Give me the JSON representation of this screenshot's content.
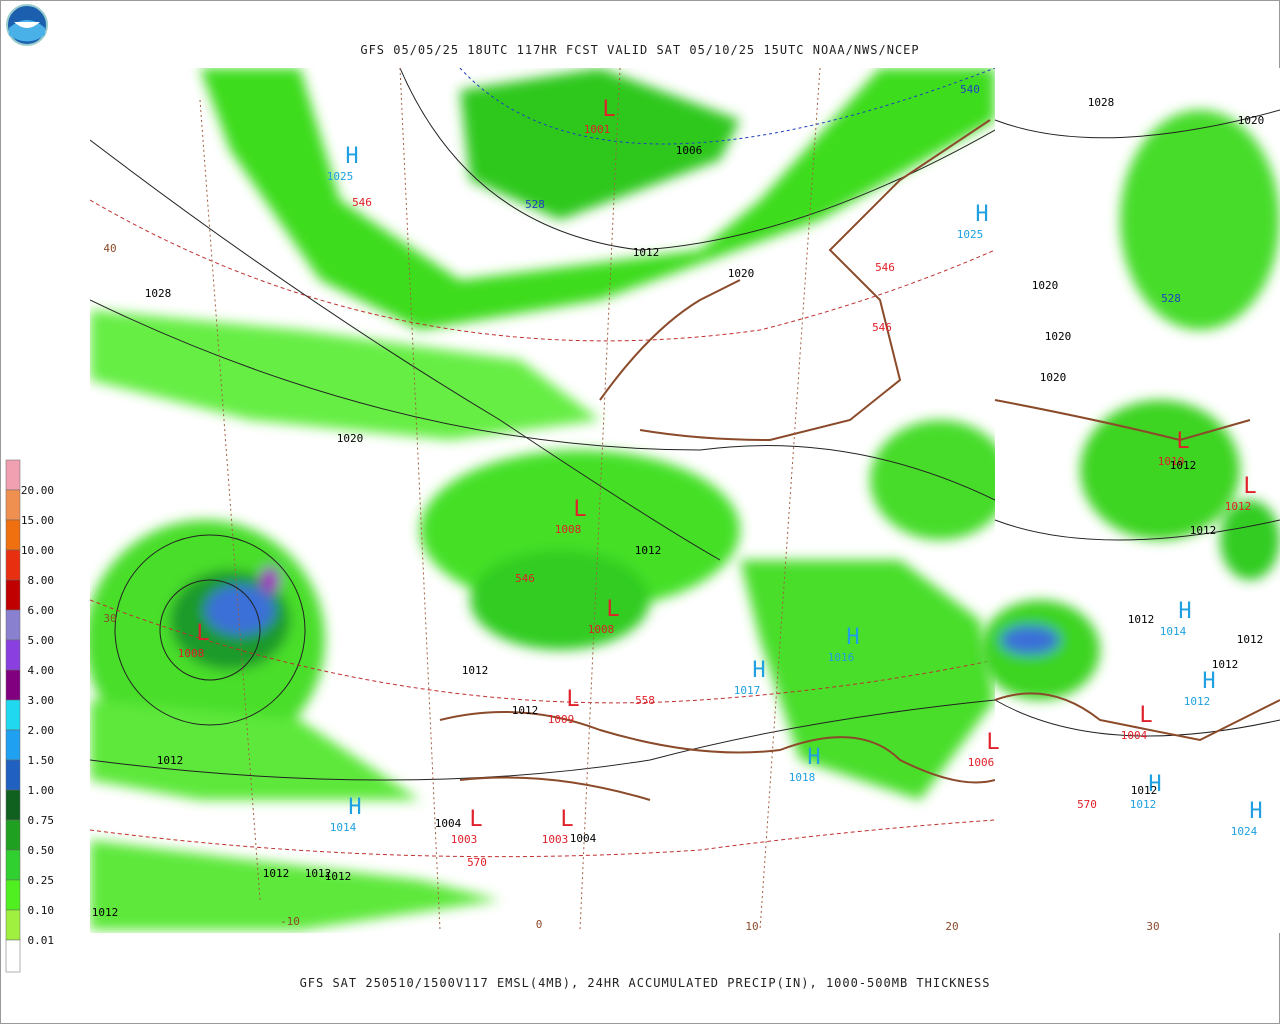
{
  "header": {
    "title": "GFS 05/05/25 18UTC 117HR FCST VALID SAT 05/10/25 15UTC NOAA/NWS/NCEP"
  },
  "footer": {
    "caption": "GFS SAT 250510/1500V117 EMSL(4MB), 24HR ACCUMULATED PRECIP(IN), 1000-500MB THICKNESS"
  },
  "legend": {
    "labels": [
      "20.00",
      "15.00",
      "10.00",
      "8.00",
      "6.00",
      "5.00",
      "4.00",
      "3.00",
      "2.00",
      "1.50",
      "1.00",
      "0.75",
      "0.50",
      "0.25",
      "0.10",
      "0.01"
    ]
  },
  "pressure_centers": [
    {
      "symbol": "H",
      "value": "1025"
    },
    {
      "symbol": "L",
      "value": "1001"
    },
    {
      "symbol": "L",
      "value": "1008"
    },
    {
      "symbol": "L",
      "value": "1008"
    },
    {
      "symbol": "L",
      "value": "1008"
    },
    {
      "symbol": "L",
      "value": "1009"
    },
    {
      "symbol": "L",
      "value": "1003"
    },
    {
      "symbol": "L",
      "value": "1003"
    },
    {
      "symbol": "H",
      "value": "1014"
    },
    {
      "symbol": "H",
      "value": "1017"
    },
    {
      "symbol": "H",
      "value": "1018"
    },
    {
      "symbol": "H",
      "value": "1016"
    },
    {
      "symbol": "L",
      "value": "1004"
    },
    {
      "symbol": "L",
      "value": "1006"
    },
    {
      "symbol": "L",
      "value": "1010"
    },
    {
      "symbol": "L",
      "value": "1012"
    },
    {
      "symbol": "H",
      "value": "1014"
    },
    {
      "symbol": "H",
      "value": "1012"
    },
    {
      "symbol": "H",
      "value": "1012"
    },
    {
      "symbol": "H",
      "value": "1024"
    },
    {
      "symbol": "H",
      "value": "1025"
    }
  ],
  "contour_labels": [
    "1028",
    "1020",
    "1012",
    "1012",
    "1012",
    "1004",
    "1004",
    "1012",
    "1012",
    "1012",
    "1012",
    "1012",
    "1020",
    "1012",
    "1028",
    "1020",
    "1020",
    "1020",
    "1020",
    "1012",
    "1012",
    "1012",
    "1012",
    "1012",
    "1012",
    "1006"
  ],
  "thickness_labels": [
    "546",
    "528",
    "540",
    "546",
    "546",
    "546",
    "558",
    "570",
    "570",
    "528"
  ],
  "grid_labels": [
    "40",
    "30",
    "-10",
    "0",
    "10",
    "20",
    "30"
  ]
}
